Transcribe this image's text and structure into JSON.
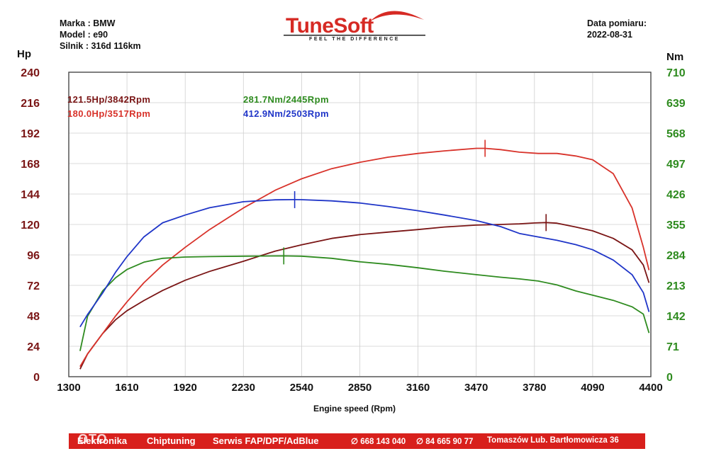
{
  "header": {
    "left_lines": [
      "Marka : BMW",
      "Model : e90",
      "Silnik  : 316d 116km"
    ],
    "date_label": "Data pomiaru:",
    "date_value": "2022-08-31"
  },
  "logo": {
    "word": "TuneSoft",
    "tagline": "FEEL THE DIFFERENCE"
  },
  "footer": {
    "items": [
      "Elektronika",
      "Chiptuning",
      "Serwis FAP/DPF/AdBlue",
      "∅ 668 143 040",
      "∅ 84 665 90 77",
      "Tomaszów Lub. Bartłomowicza 36"
    ],
    "watermark": "OTO"
  },
  "colors": {
    "hp_stock": "#7a1515",
    "hp_tuned": "#d8322a",
    "nm_stock": "#2e8b1f",
    "nm_tuned": "#1f35c8",
    "left_axis": "#7a1515",
    "right_axis": "#2e8b1f"
  },
  "chart_data": {
    "type": "line",
    "xlabel": "Engine speed (Rpm)",
    "ylabel_left": "Hp",
    "ylabel_right": "Nm",
    "xlim": [
      1300,
      4400
    ],
    "ylim_left": [
      0,
      240
    ],
    "ylim_right": [
      0,
      710
    ],
    "x_ticks": [
      1300,
      1610,
      1920,
      2230,
      2540,
      2850,
      3160,
      3470,
      3780,
      4090,
      4400
    ],
    "y_ticks_left": [
      0,
      24,
      48,
      72,
      96,
      120,
      144,
      168,
      192,
      216,
      240
    ],
    "y_ticks_right": [
      0,
      71,
      142,
      213,
      284,
      355,
      426,
      497,
      568,
      639,
      710
    ],
    "grid": true,
    "annotations": [
      {
        "text": "121.5Hp/3842Rpm",
        "color": "#7a1515"
      },
      {
        "text": "180.0Hp/3517Rpm",
        "color": "#d8322a"
      },
      {
        "text": "281.7Nm/2445Rpm",
        "color": "#2e8b1f"
      },
      {
        "text": "412.9Nm/2503Rpm",
        "color": "#1f35c8"
      }
    ],
    "series": [
      {
        "axis": "left",
        "color": "#7a1515",
        "peak_x": 3842,
        "x": [
          1360,
          1400,
          1480,
          1550,
          1610,
          1700,
          1800,
          1920,
          2050,
          2230,
          2400,
          2540,
          2700,
          2850,
          3000,
          3160,
          3300,
          3470,
          3600,
          3700,
          3780,
          3842,
          3900,
          4000,
          4090,
          4200,
          4300,
          4360,
          4390
        ],
        "values": [
          6,
          18,
          34,
          45,
          52,
          60,
          68,
          76,
          83,
          91,
          99,
          104,
          109,
          112,
          114,
          116,
          118,
          119.5,
          120,
          120.5,
          121.2,
          121.5,
          121,
          118,
          115,
          109,
          100,
          88,
          74
        ]
      },
      {
        "axis": "left",
        "color": "#d8322a",
        "peak_x": 3517,
        "x": [
          1360,
          1400,
          1480,
          1550,
          1610,
          1700,
          1800,
          1920,
          2050,
          2230,
          2400,
          2540,
          2700,
          2850,
          3000,
          3160,
          3300,
          3470,
          3517,
          3600,
          3700,
          3800,
          3900,
          4000,
          4090,
          4200,
          4300,
          4360,
          4390
        ],
        "values": [
          8,
          18,
          34,
          48,
          59,
          74,
          88,
          102,
          116,
          133,
          147,
          156,
          164,
          169,
          173,
          176,
          178,
          180,
          180,
          179,
          177,
          176,
          176,
          174,
          171,
          160,
          133,
          102,
          84
        ]
      },
      {
        "axis": "right",
        "color": "#2e8b1f",
        "peak_x": 2445,
        "x": [
          1360,
          1400,
          1480,
          1550,
          1610,
          1700,
          1800,
          1920,
          2050,
          2230,
          2445,
          2540,
          2700,
          2850,
          3000,
          3160,
          3300,
          3470,
          3600,
          3700,
          3800,
          3900,
          4000,
          4090,
          4200,
          4300,
          4360,
          4390
        ],
        "values": [
          60,
          141,
          200,
          231,
          250,
          267,
          276,
          279,
          280,
          281,
          281.7,
          281,
          276,
          268,
          262,
          254,
          246,
          238,
          232,
          228,
          223,
          214,
          200,
          190,
          178,
          163,
          146,
          102
        ]
      },
      {
        "axis": "right",
        "color": "#1f35c8",
        "peak_x": 2503,
        "x": [
          1360,
          1400,
          1480,
          1550,
          1610,
          1700,
          1800,
          1920,
          2050,
          2230,
          2400,
          2503,
          2540,
          2700,
          2850,
          3000,
          3160,
          3300,
          3470,
          3600,
          3700,
          3800,
          3900,
          4000,
          4090,
          4200,
          4300,
          4360,
          4390
        ],
        "values": [
          116,
          145,
          195,
          244,
          280,
          326,
          359,
          377,
          394,
          408,
          412.5,
          412.9,
          412.8,
          410,
          405,
          397,
          387,
          377,
          364,
          350,
          334,
          326,
          318,
          308,
          296,
          272,
          238,
          196,
          151
        ]
      }
    ]
  }
}
